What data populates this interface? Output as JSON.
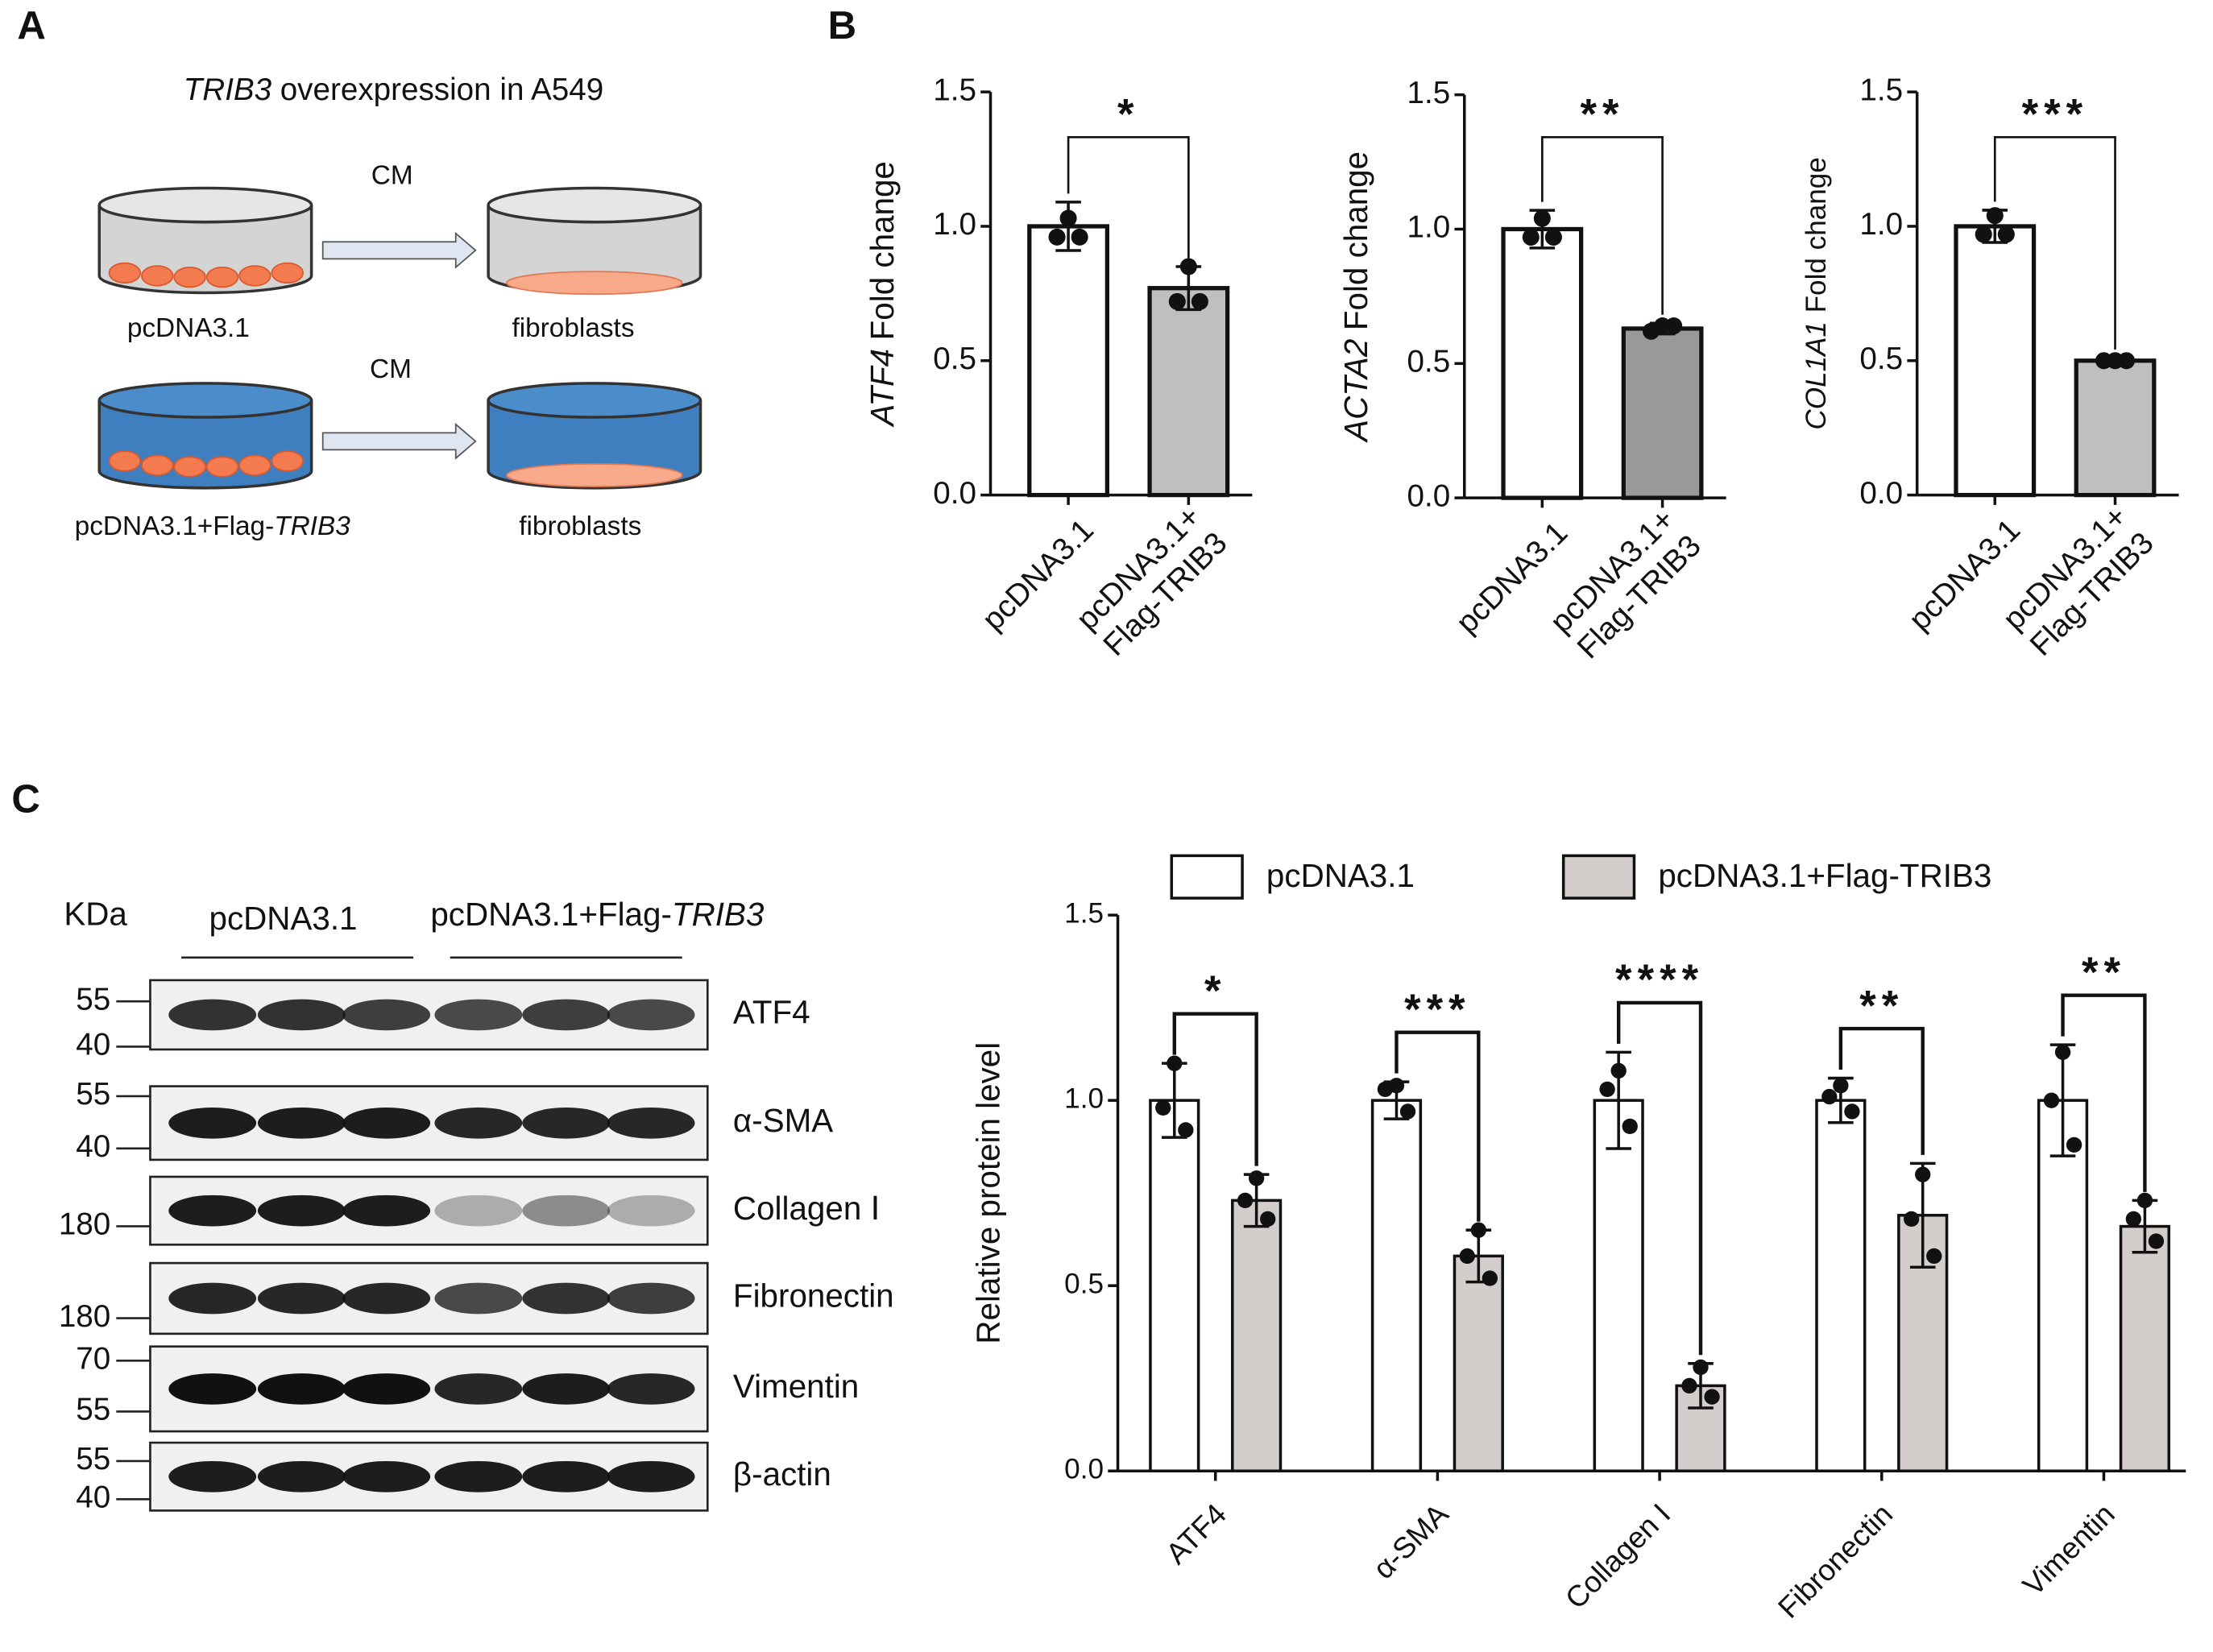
{
  "panel_labels": [
    "A",
    "B",
    "C"
  ],
  "schematic": {
    "title_italic": "TRIB3",
    "title": "overexpression in A549",
    "rows": [
      {
        "medium": "CM",
        "source": "pcDNA3.1",
        "target": "fibroblasts"
      },
      {
        "medium": "CM",
        "source": "pcDNA3.1+Flag-",
        "source_italic": "TRIB3",
        "target": "fibroblasts"
      }
    ]
  },
  "blot": {
    "unit": "KDa",
    "groups": [
      "pcDNA3.1",
      "pcDNA3.1+Flag-"
    ],
    "group_italic": "TRIB3",
    "rows": [
      {
        "name": "ATF4",
        "markers": [
          "55",
          "40"
        ]
      },
      {
        "name": "α-SMA",
        "markers": [
          "55",
          "40"
        ]
      },
      {
        "name": "Collagen Ⅰ",
        "markers": [
          "180"
        ]
      },
      {
        "name": "Fibronectin",
        "markers": [
          "180"
        ]
      },
      {
        "name": "Vimentin",
        "markers": [
          "70",
          "55"
        ]
      },
      {
        "name": "β-actin",
        "markers": [
          "55",
          "40"
        ]
      }
    ]
  },
  "chart_data": [
    {
      "type": "bar",
      "ylabel_italic": "ATF4",
      "ylabel": "Fold change",
      "categories": [
        "pcDNA3.1",
        "pcDNA3.1+Flag-TRIB3"
      ],
      "series": [
        {
          "color": "#bfbfbf",
          "values": [
            1.0,
            0.77
          ],
          "errors": [
            0.09,
            0.08
          ],
          "points": [
            [
              1.03,
              0.96,
              0.96
            ],
            [
              0.85,
              0.72,
              0.72
            ]
          ]
        }
      ],
      "significance": [
        "*"
      ],
      "ylim": [
        0,
        1.5
      ],
      "yticks": [
        {
          "value": 0,
          "label": "0.0"
        },
        {
          "value": 0.5,
          "label": "0.5"
        },
        {
          "value": 1,
          "label": "1.0"
        },
        {
          "value": 1.5,
          "label": "1.5"
        }
      ]
    },
    {
      "type": "bar",
      "ylabel_italic": "ACTA2",
      "ylabel": "Fold change",
      "categories": [
        "pcDNA3.1",
        "pcDNA3.1+Flag-TRIB3"
      ],
      "series": [
        {
          "color": "#999999",
          "values": [
            1.0,
            0.63
          ],
          "errors": [
            0.07,
            0.02
          ],
          "points": [
            [
              1.04,
              0.97,
              0.97
            ],
            [
              0.64,
              0.62,
              0.64
            ]
          ]
        }
      ],
      "significance": [
        "**"
      ],
      "ylim": [
        0,
        1.5
      ],
      "yticks": [
        {
          "value": 0,
          "label": "0.0"
        },
        {
          "value": 0.5,
          "label": "0.5"
        },
        {
          "value": 1,
          "label": "1.0"
        },
        {
          "value": 1.5,
          "label": "1.5"
        }
      ]
    },
    {
      "type": "bar",
      "ylabel_italic": "COL1A1",
      "ylabel": "Fold change",
      "categories": [
        "pcDNA3.1",
        "pcDNA3.1+Flag-TRIB3"
      ],
      "series": [
        {
          "color": "#bfbfbf",
          "values": [
            1.0,
            0.5
          ],
          "errors": [
            0.06,
            0.01
          ],
          "points": [
            [
              1.04,
              0.97,
              0.97
            ],
            [
              0.5,
              0.5,
              0.5
            ]
          ]
        }
      ],
      "significance": [
        "***"
      ],
      "ylim": [
        0,
        1.5
      ],
      "yticks": [
        {
          "value": 0,
          "label": "0.0"
        },
        {
          "value": 0.5,
          "label": "0.5"
        },
        {
          "value": 1,
          "label": "1.0"
        },
        {
          "value": 1.5,
          "label": "1.5"
        }
      ]
    },
    {
      "type": "grouped_bar",
      "ylabel": "Relative protein level",
      "categories": [
        "ATF4",
        "α-SMA",
        "Collagen I",
        "Fibronectin",
        "Vimentin"
      ],
      "series": [
        {
          "name": "pcDNA3.1",
          "color": "#ffffff",
          "values": [
            1.0,
            1.0,
            1.0,
            1.0,
            1.0
          ],
          "errors": [
            0.1,
            0.05,
            0.13,
            0.06,
            0.15
          ],
          "points": [
            [
              1.1,
              0.98,
              0.92
            ],
            [
              1.04,
              1.03,
              0.97
            ],
            [
              1.08,
              1.03,
              0.93
            ],
            [
              1.04,
              1.01,
              0.97
            ],
            [
              1.13,
              1.0,
              0.88
            ]
          ]
        },
        {
          "name": "pcDNA3.1+Flag-TRIB3",
          "color": "#d3cdcb",
          "values": [
            0.73,
            0.58,
            0.23,
            0.69,
            0.66
          ],
          "errors": [
            0.07,
            0.07,
            0.06,
            0.14,
            0.07
          ],
          "points": [
            [
              0.79,
              0.73,
              0.68
            ],
            [
              0.65,
              0.58,
              0.52
            ],
            [
              0.28,
              0.23,
              0.2
            ],
            [
              0.8,
              0.68,
              0.58
            ],
            [
              0.73,
              0.68,
              0.62
            ]
          ]
        }
      ],
      "significance": [
        "*",
        "***",
        "****",
        "**",
        "**"
      ],
      "ylim": [
        0,
        1.5
      ],
      "yticks": [
        {
          "value": 0,
          "label": "0.0"
        },
        {
          "value": 0.5,
          "label": "0.5"
        },
        {
          "value": 1,
          "label": "1.0"
        },
        {
          "value": 1.5,
          "label": "1.5"
        }
      ]
    }
  ]
}
